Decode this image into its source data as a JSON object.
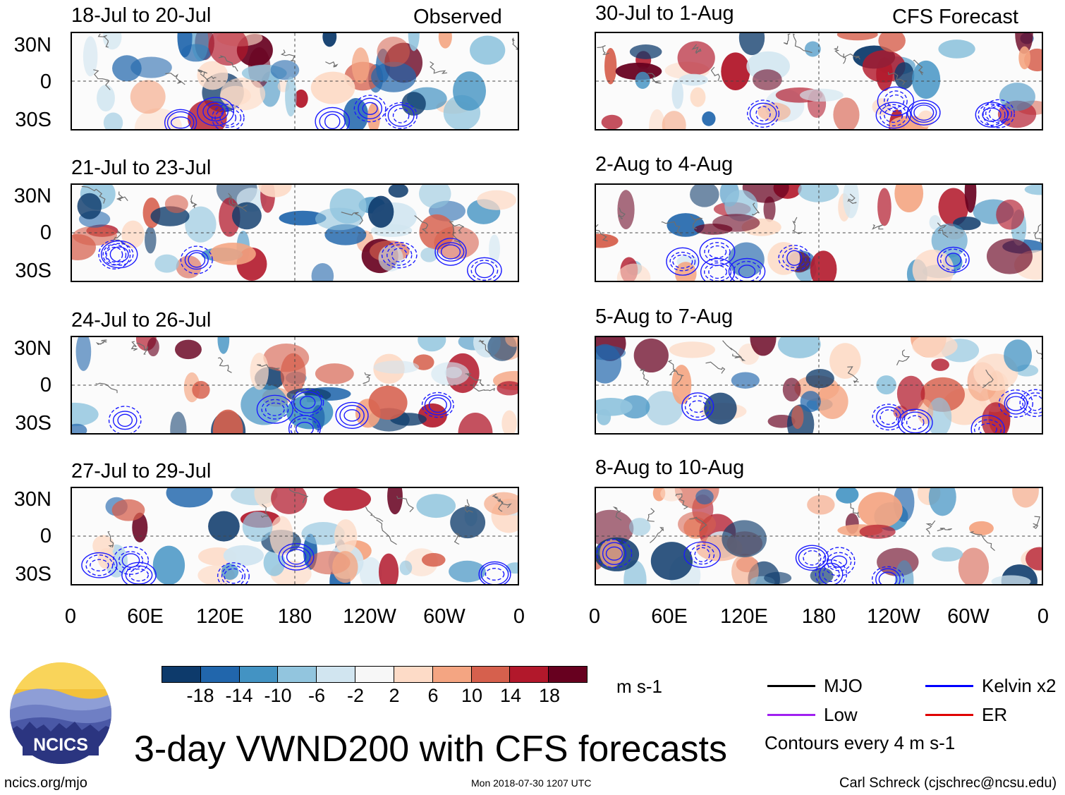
{
  "left_header_tag": "Observed",
  "right_header_tag": "CFS Forecast",
  "panels_left": [
    {
      "title": "18-Jul to 20-Jul"
    },
    {
      "title": "21-Jul to 23-Jul"
    },
    {
      "title": "24-Jul to 26-Jul"
    },
    {
      "title": "27-Jul to 29-Jul"
    }
  ],
  "panels_right": [
    {
      "title": "30-Jul to 1-Aug"
    },
    {
      "title": "2-Aug to 4-Aug"
    },
    {
      "title": "5-Aug to 7-Aug"
    },
    {
      "title": "8-Aug to 10-Aug"
    }
  ],
  "y_labels": [
    "30N",
    "0",
    "30S"
  ],
  "x_labels": [
    "0",
    "60E",
    "120E",
    "180",
    "120W",
    "60W",
    "0"
  ],
  "colorbar": {
    "labels": [
      "-18",
      "-14",
      "-10",
      "-6",
      "-2",
      "2",
      "6",
      "10",
      "14",
      "18"
    ],
    "colors": [
      "#0d3a6b",
      "#2166ac",
      "#4393c3",
      "#92c5de",
      "#d1e5f0",
      "#f7f7f7",
      "#fddbc7",
      "#f4a582",
      "#d6604d",
      "#b2182b",
      "#67001f"
    ],
    "units": "m s-1"
  },
  "legend": {
    "items": [
      {
        "label": "MJO",
        "color": "#000000"
      },
      {
        "label": "Kelvin x2",
        "color": "#0000ff"
      },
      {
        "label": "Low",
        "color": "#a020f0"
      },
      {
        "label": "ER",
        "color": "#e00000"
      }
    ],
    "note": "Contours every 4 m s-1"
  },
  "logo_text": "NCICS",
  "main_title": "3-day VWND200 with CFS forecasts",
  "footer": {
    "left": "ncics.org/mjo",
    "center": "Mon 2018-07-30 1207 UTC",
    "right": "Carl Schreck (cjschrec@ncsu.edu)"
  }
}
